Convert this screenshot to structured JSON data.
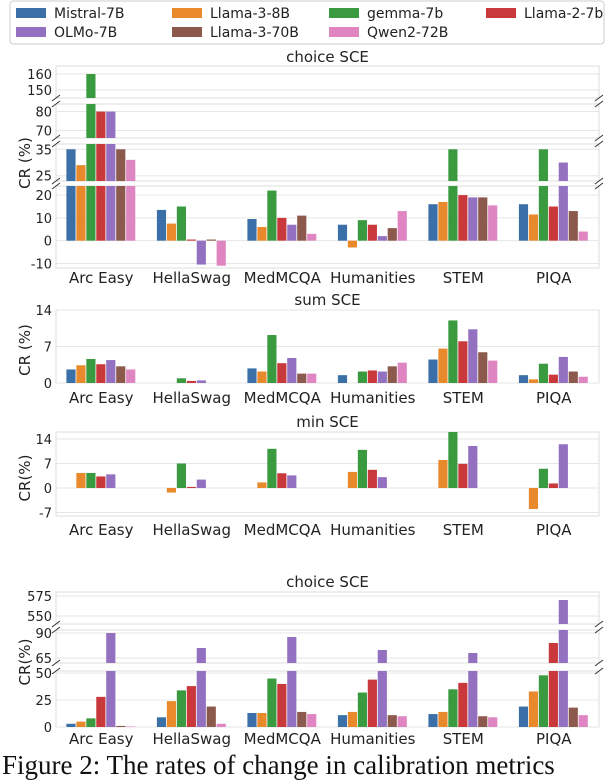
{
  "legend": {
    "models": [
      "Mistral-7B",
      "Llama-3-8B",
      "gemma-7b",
      "Llama-2-7b",
      "OLMo-7B",
      "Llama-3-70B",
      "Qwen2-72B"
    ],
    "colors": [
      "#3a6fa8",
      "#e8892b",
      "#3a9a3f",
      "#c9383a",
      "#9370c0",
      "#8c5a4d",
      "#df86c2"
    ]
  },
  "caption": "Figure 2: The rates of change in calibration metrics",
  "chart_data": [
    {
      "type": "bar",
      "title": "choice SCE",
      "ylabel": "CR (%)",
      "categories": [
        "Arc Easy",
        "HellaSwag",
        "MedMCQA",
        "Humanities",
        "STEM",
        "PIQA"
      ],
      "broken_axis": true,
      "segments": [
        {
          "ylim": [
            145,
            165
          ],
          "ticks": [
            150,
            160
          ]
        },
        {
          "ylim": [
            66,
            84
          ],
          "ticks": [
            70,
            80
          ]
        },
        {
          "ylim": [
            23,
            37
          ],
          "ticks": [
            25,
            35
          ]
        },
        {
          "ylim": [
            -12,
            24
          ],
          "ticks": [
            -10,
            0,
            10,
            20
          ]
        }
      ],
      "series": [
        {
          "name": "Mistral-7B",
          "values": [
            35,
            13.5,
            9.5,
            7,
            16,
            16
          ]
        },
        {
          "name": "Llama-3-8B",
          "values": [
            29,
            7.5,
            6,
            -3,
            17,
            11.5
          ]
        },
        {
          "name": "gemma-7b",
          "values": [
            160,
            15,
            22,
            9,
            35,
            35
          ]
        },
        {
          "name": "Llama-2-7b",
          "values": [
            80,
            0.5,
            10,
            7,
            20,
            15
          ]
        },
        {
          "name": "OLMo-7B",
          "values": [
            80,
            -10.5,
            7,
            2,
            19,
            30
          ]
        },
        {
          "name": "Llama-3-70B",
          "values": [
            35,
            0.5,
            11,
            5.5,
            19,
            13
          ]
        },
        {
          "name": "Qwen2-72B",
          "values": [
            31,
            -11,
            3,
            13,
            15.5,
            4
          ]
        }
      ]
    },
    {
      "type": "bar",
      "title": "sum SCE",
      "ylabel": "CR (%)",
      "categories": [
        "Arc Easy",
        "HellaSwag",
        "MedMCQA",
        "Humanities",
        "STEM",
        "PIQA"
      ],
      "ylim": [
        0,
        14
      ],
      "yticks": [
        0,
        7,
        14
      ],
      "series": [
        {
          "name": "Mistral-7B",
          "values": [
            2.6,
            0,
            2.8,
            1.5,
            4.5,
            1.5
          ]
        },
        {
          "name": "Llama-3-8B",
          "values": [
            3.4,
            0,
            2.2,
            0,
            6.6,
            0.7
          ]
        },
        {
          "name": "gemma-7b",
          "values": [
            4.6,
            0.9,
            9.2,
            2.2,
            12,
            3.7
          ]
        },
        {
          "name": "Llama-2-7b",
          "values": [
            3.6,
            0.4,
            3.8,
            2.4,
            8,
            1.6
          ]
        },
        {
          "name": "OLMo-7B",
          "values": [
            4.4,
            0.5,
            4.8,
            2.2,
            10.3,
            5
          ]
        },
        {
          "name": "Llama-3-70B",
          "values": [
            3.2,
            0,
            1.8,
            3.2,
            5.9,
            2.2
          ]
        },
        {
          "name": "Qwen2-72B",
          "values": [
            2.6,
            0,
            1.8,
            3.9,
            4.3,
            1.2
          ]
        }
      ]
    },
    {
      "type": "bar",
      "title": "min SCE",
      "ylabel": "CR(%)",
      "categories": [
        "Arc Easy",
        "HellaSwag",
        "MedMCQA",
        "Humanities",
        "STEM",
        "PIQA"
      ],
      "ylim": [
        -8,
        16
      ],
      "yticks": [
        -7,
        0,
        7,
        14
      ],
      "series": [
        {
          "name": "Mistral-7B",
          "values": [
            0,
            0,
            0,
            0,
            0,
            0
          ]
        },
        {
          "name": "Llama-3-8B",
          "values": [
            4.3,
            -1.3,
            1.6,
            4.6,
            8,
            -6
          ]
        },
        {
          "name": "gemma-7b",
          "values": [
            4.3,
            7,
            11.2,
            10.9,
            16.6,
            5.5
          ]
        },
        {
          "name": "Llama-2-7b",
          "values": [
            3.3,
            0.3,
            4.2,
            5.2,
            6.9,
            1.3
          ]
        },
        {
          "name": "OLMo-7B",
          "values": [
            3.9,
            2.4,
            3.6,
            3.1,
            12,
            12.5
          ]
        },
        {
          "name": "Llama-3-70B",
          "values": [
            0,
            0,
            0,
            0,
            0,
            0
          ]
        },
        {
          "name": "Qwen2-72B",
          "values": [
            0,
            0,
            0,
            0,
            0,
            0
          ]
        }
      ]
    },
    {
      "type": "bar",
      "title": "choice SCE",
      "ylabel": "CR(%)",
      "categories": [
        "Arc Easy",
        "HellaSwag",
        "MedMCQA",
        "Humanities",
        "STEM",
        "PIQA"
      ],
      "broken_axis": true,
      "segments": [
        {
          "ylim": [
            540,
            580
          ],
          "ticks": [
            550,
            575
          ]
        },
        {
          "ylim": [
            60,
            93
          ],
          "ticks": [
            65,
            90
          ]
        },
        {
          "ylim": [
            0,
            52
          ],
          "ticks": [
            0,
            25,
            50
          ]
        }
      ],
      "series": [
        {
          "name": "Mistral-7B",
          "values": [
            3,
            9,
            13,
            11,
            12,
            19
          ]
        },
        {
          "name": "Llama-3-8B",
          "values": [
            5,
            24,
            13,
            14,
            14,
            33
          ]
        },
        {
          "name": "gemma-7b",
          "values": [
            8,
            34,
            45,
            32,
            35,
            48
          ]
        },
        {
          "name": "Llama-2-7b",
          "values": [
            28,
            38,
            40,
            44,
            41,
            80
          ]
        },
        {
          "name": "OLMo-7B",
          "values": [
            90,
            75,
            86,
            73,
            70,
            570
          ]
        },
        {
          "name": "Llama-3-70B",
          "values": [
            1,
            19,
            14,
            11,
            10,
            18
          ]
        },
        {
          "name": "Qwen2-72B",
          "values": [
            0.5,
            3,
            12,
            10,
            9,
            11
          ]
        }
      ]
    }
  ]
}
